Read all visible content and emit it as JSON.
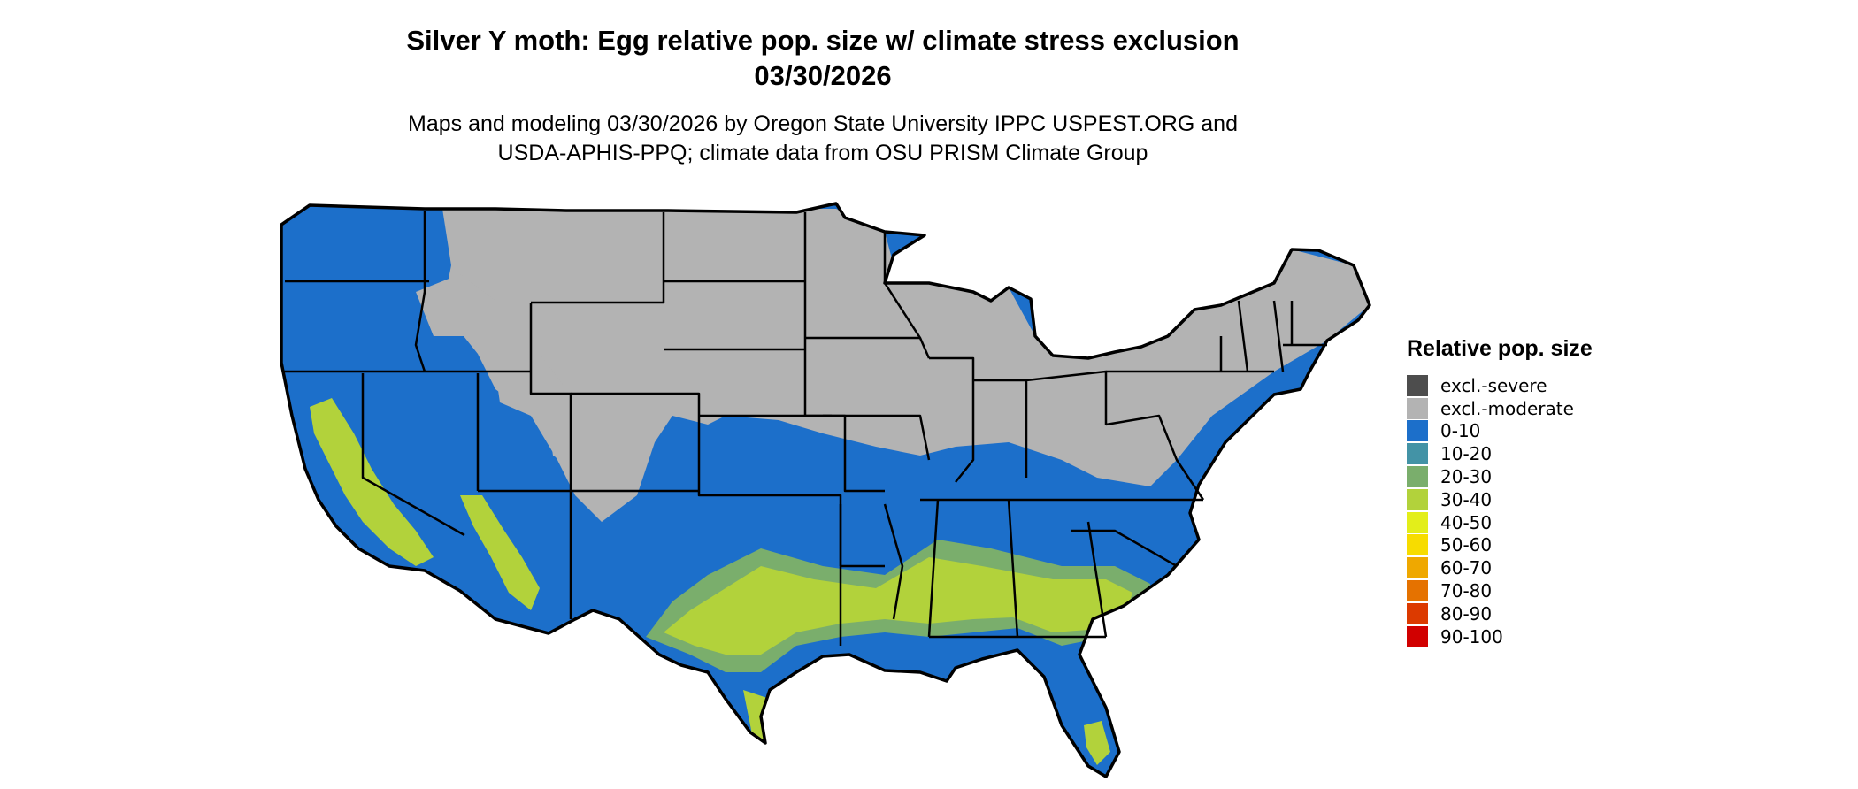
{
  "title": {
    "line1": "Silver Y moth: Egg relative pop. size w/ climate stress exclusion",
    "line2": "03/30/2026"
  },
  "subtitle": {
    "line1": "Maps and modeling 03/30/2026 by Oregon State University IPPC USPEST.ORG and",
    "line2": "USDA-APHIS-PPQ; climate data from OSU PRISM Climate Group"
  },
  "legend": {
    "title": "Relative pop. size",
    "items": [
      {
        "label": "excl.-severe",
        "color": "#4d4d4d"
      },
      {
        "label": "excl.-moderate",
        "color": "#b3b3b3"
      },
      {
        "label": "0-10",
        "color": "#1c6fca"
      },
      {
        "label": "10-20",
        "color": "#4393a6"
      },
      {
        "label": "20-30",
        "color": "#7aae6c"
      },
      {
        "label": "30-40",
        "color": "#b2d23b"
      },
      {
        "label": "40-50",
        "color": "#e3ee1a"
      },
      {
        "label": "50-60",
        "color": "#f7dc00"
      },
      {
        "label": "60-70",
        "color": "#efa800"
      },
      {
        "label": "70-80",
        "color": "#e57200"
      },
      {
        "label": "80-90",
        "color": "#dc3a00"
      },
      {
        "label": "90-100",
        "color": "#d10000"
      }
    ]
  },
  "map": {
    "colors": {
      "land": "#1c6fca",
      "excluded": "#b3b3b3",
      "warm": "#b2d23b",
      "transition": "#7aae6c",
      "border": "#000000"
    }
  }
}
